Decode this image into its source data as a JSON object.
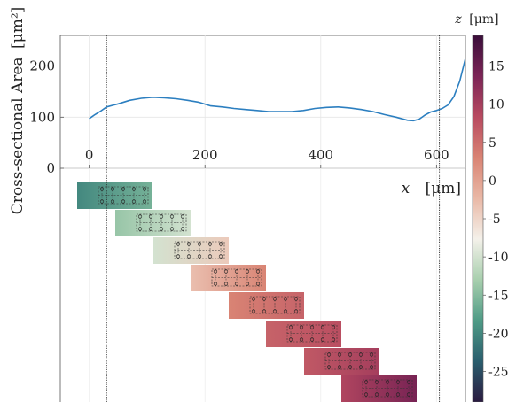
{
  "chart_data": {
    "type": "line",
    "ylabel_main": "Cross-sectional Area",
    "ylabel_unit": "[μm²]",
    "xlabel_var": "x",
    "xlabel_unit": "[μm]",
    "xlim": [
      -50,
      650
    ],
    "ylim": [
      0,
      260
    ],
    "x_ticks": [
      0,
      200,
      400,
      600
    ],
    "y_ticks": [
      0,
      100,
      200
    ],
    "x_tick_labels": [
      "0",
      "200",
      "400",
      "600"
    ],
    "y_tick_labels": [
      "0",
      "100",
      "200"
    ],
    "grid": true,
    "vertical_markers": [
      30,
      605
    ],
    "series": [
      {
        "color": "#2c7fc0",
        "x": [
          0,
          5,
          10,
          20,
          30,
          50,
          70,
          90,
          110,
          130,
          150,
          170,
          190,
          210,
          230,
          250,
          270,
          290,
          310,
          330,
          350,
          370,
          390,
          410,
          430,
          450,
          470,
          490,
          510,
          530,
          550,
          560,
          570,
          580,
          590,
          600,
          610,
          620,
          630,
          640,
          650,
          660
        ],
        "y": [
          97,
          101,
          105,
          112,
          120,
          126,
          133,
          137,
          139,
          138,
          136,
          133,
          129,
          122,
          120,
          117,
          115,
          113,
          111,
          111,
          111,
          113,
          117,
          119,
          120,
          118,
          115,
          111,
          105,
          100,
          94,
          93,
          96,
          104,
          110,
          113,
          117,
          124,
          140,
          170,
          215,
          270
        ]
      }
    ]
  },
  "colorbar": {
    "label_var": "z",
    "label_unit": "[μm]",
    "ticks": [
      15,
      10,
      5,
      0,
      -5,
      -10,
      -15,
      -20,
      -25
    ],
    "range": [
      -29,
      19
    ],
    "stops": [
      "#2a1a40",
      "#2a5e6e",
      "#4f9b86",
      "#a8cfae",
      "#f4f1ea",
      "#e9b8a6",
      "#d98474",
      "#b84a60",
      "#7b2456",
      "#3a0e3a"
    ]
  }
}
